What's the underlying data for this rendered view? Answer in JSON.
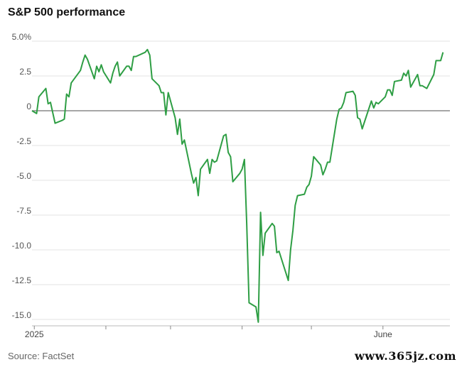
{
  "title": "S&P 500 performance",
  "source": "Source: FactSet",
  "watermark": "www.365jz.com",
  "chart_data": {
    "type": "line",
    "title": "S&P 500 performance",
    "ylim": [
      -15.5,
      5.0
    ],
    "yticks": [
      {
        "value": 5.0,
        "label": "5.0%"
      },
      {
        "value": 2.5,
        "label": "2.5"
      },
      {
        "value": 0,
        "label": "0"
      },
      {
        "value": -2.5,
        "label": "-2.5"
      },
      {
        "value": -5.0,
        "label": "-5.0"
      },
      {
        "value": -7.5,
        "label": "-7.5"
      },
      {
        "value": -10.0,
        "label": "-10.0"
      },
      {
        "value": -12.5,
        "label": "-12.5"
      },
      {
        "value": -15.0,
        "label": "-15.0"
      }
    ],
    "x_range": [
      "2024-12-31",
      "2025-06-30"
    ],
    "xticks": [
      {
        "date": "2025-01-01",
        "label": "2025"
      },
      {
        "date": "2025-02-01",
        "label": ""
      },
      {
        "date": "2025-03-01",
        "label": ""
      },
      {
        "date": "2025-04-01",
        "label": ""
      },
      {
        "date": "2025-05-01",
        "label": ""
      },
      {
        "date": "2025-06-01",
        "label": "June"
      }
    ],
    "grid": true,
    "line_color": "#2e9e44",
    "zero_line_color": "#888888",
    "series": [
      {
        "values": [
          [
            "2024-12-31",
            0
          ],
          [
            "2025-01-02",
            -0.2
          ],
          [
            "2025-01-03",
            1.0
          ],
          [
            "2025-01-06",
            1.6
          ],
          [
            "2025-01-07",
            0.5
          ],
          [
            "2025-01-08",
            0.6
          ],
          [
            "2025-01-10",
            -0.9
          ],
          [
            "2025-01-13",
            -0.7
          ],
          [
            "2025-01-14",
            -0.6
          ],
          [
            "2025-01-15",
            1.2
          ],
          [
            "2025-01-16",
            1.0
          ],
          [
            "2025-01-17",
            2.0
          ],
          [
            "2025-01-21",
            2.9
          ],
          [
            "2025-01-22",
            3.5
          ],
          [
            "2025-01-23",
            4.0
          ],
          [
            "2025-01-24",
            3.7
          ],
          [
            "2025-01-27",
            2.3
          ],
          [
            "2025-01-28",
            3.2
          ],
          [
            "2025-01-29",
            2.8
          ],
          [
            "2025-01-30",
            3.3
          ],
          [
            "2025-01-31",
            2.8
          ],
          [
            "2025-02-03",
            2.0
          ],
          [
            "2025-02-04",
            2.7
          ],
          [
            "2025-02-05",
            3.2
          ],
          [
            "2025-02-06",
            3.5
          ],
          [
            "2025-02-07",
            2.5
          ],
          [
            "2025-02-10",
            3.2
          ],
          [
            "2025-02-11",
            3.2
          ],
          [
            "2025-02-12",
            2.9
          ],
          [
            "2025-02-13",
            3.9
          ],
          [
            "2025-02-14",
            3.9
          ],
          [
            "2025-02-18",
            4.2
          ],
          [
            "2025-02-19",
            4.4
          ],
          [
            "2025-02-20",
            4.0
          ],
          [
            "2025-02-21",
            2.3
          ],
          [
            "2025-02-24",
            1.8
          ],
          [
            "2025-02-25",
            1.3
          ],
          [
            "2025-02-26",
            1.3
          ],
          [
            "2025-02-27",
            -0.3
          ],
          [
            "2025-02-28",
            1.3
          ],
          [
            "2025-03-03",
            -0.5
          ],
          [
            "2025-03-04",
            -1.7
          ],
          [
            "2025-03-05",
            -0.6
          ],
          [
            "2025-03-06",
            -2.4
          ],
          [
            "2025-03-07",
            -2.1
          ],
          [
            "2025-03-10",
            -4.5
          ],
          [
            "2025-03-11",
            -5.2
          ],
          [
            "2025-03-12",
            -4.8
          ],
          [
            "2025-03-13",
            -6.1
          ],
          [
            "2025-03-14",
            -4.2
          ],
          [
            "2025-03-17",
            -3.5
          ],
          [
            "2025-03-18",
            -4.5
          ],
          [
            "2025-03-19",
            -3.5
          ],
          [
            "2025-03-20",
            -3.7
          ],
          [
            "2025-03-21",
            -3.6
          ],
          [
            "2025-03-24",
            -1.8
          ],
          [
            "2025-03-25",
            -1.7
          ],
          [
            "2025-03-26",
            -3.0
          ],
          [
            "2025-03-27",
            -3.3
          ],
          [
            "2025-03-28",
            -5.1
          ],
          [
            "2025-03-31",
            -4.5
          ],
          [
            "2025-04-01",
            -4.2
          ],
          [
            "2025-04-02",
            -3.5
          ],
          [
            "2025-04-03",
            -8.1
          ],
          [
            "2025-04-04",
            -13.8
          ],
          [
            "2025-04-07",
            -14.1
          ],
          [
            "2025-04-08",
            -15.2
          ],
          [
            "2025-04-09",
            -7.3
          ],
          [
            "2025-04-10",
            -10.4
          ],
          [
            "2025-04-11",
            -8.8
          ],
          [
            "2025-04-14",
            -8.1
          ],
          [
            "2025-04-15",
            -8.3
          ],
          [
            "2025-04-16",
            -10.2
          ],
          [
            "2025-04-17",
            -10.1
          ],
          [
            "2025-04-21",
            -12.2
          ],
          [
            "2025-04-22",
            -10.0
          ],
          [
            "2025-04-23",
            -8.6
          ],
          [
            "2025-04-24",
            -6.8
          ],
          [
            "2025-04-25",
            -6.1
          ],
          [
            "2025-04-28",
            -6.0
          ],
          [
            "2025-04-29",
            -5.5
          ],
          [
            "2025-04-30",
            -5.3
          ],
          [
            "2025-05-01",
            -4.7
          ],
          [
            "2025-05-02",
            -3.3
          ],
          [
            "2025-05-05",
            -3.9
          ],
          [
            "2025-05-06",
            -4.6
          ],
          [
            "2025-05-07",
            -4.2
          ],
          [
            "2025-05-08",
            -3.7
          ],
          [
            "2025-05-09",
            -3.7
          ],
          [
            "2025-05-12",
            -0.6
          ],
          [
            "2025-05-13",
            0.1
          ],
          [
            "2025-05-14",
            0.2
          ],
          [
            "2025-05-15",
            0.6
          ],
          [
            "2025-05-16",
            1.3
          ],
          [
            "2025-05-19",
            1.4
          ],
          [
            "2025-05-20",
            1.1
          ],
          [
            "2025-05-21",
            -0.5
          ],
          [
            "2025-05-22",
            -0.6
          ],
          [
            "2025-05-23",
            -1.3
          ],
          [
            "2025-05-27",
            0.7
          ],
          [
            "2025-05-28",
            0.2
          ],
          [
            "2025-05-29",
            0.6
          ],
          [
            "2025-05-30",
            0.5
          ],
          [
            "2025-06-02",
            1.0
          ],
          [
            "2025-06-03",
            1.5
          ],
          [
            "2025-06-04",
            1.5
          ],
          [
            "2025-06-05",
            1.1
          ],
          [
            "2025-06-06",
            2.1
          ],
          [
            "2025-06-09",
            2.2
          ],
          [
            "2025-06-10",
            2.7
          ],
          [
            "2025-06-11",
            2.5
          ],
          [
            "2025-06-12",
            2.9
          ],
          [
            "2025-06-13",
            1.7
          ],
          [
            "2025-06-16",
            2.6
          ],
          [
            "2025-06-17",
            1.8
          ],
          [
            "2025-06-18",
            1.8
          ],
          [
            "2025-06-20",
            1.6
          ],
          [
            "2025-06-23",
            2.6
          ],
          [
            "2025-06-24",
            3.6
          ],
          [
            "2025-06-26",
            3.6
          ],
          [
            "2025-06-27",
            4.2
          ]
        ]
      }
    ]
  }
}
